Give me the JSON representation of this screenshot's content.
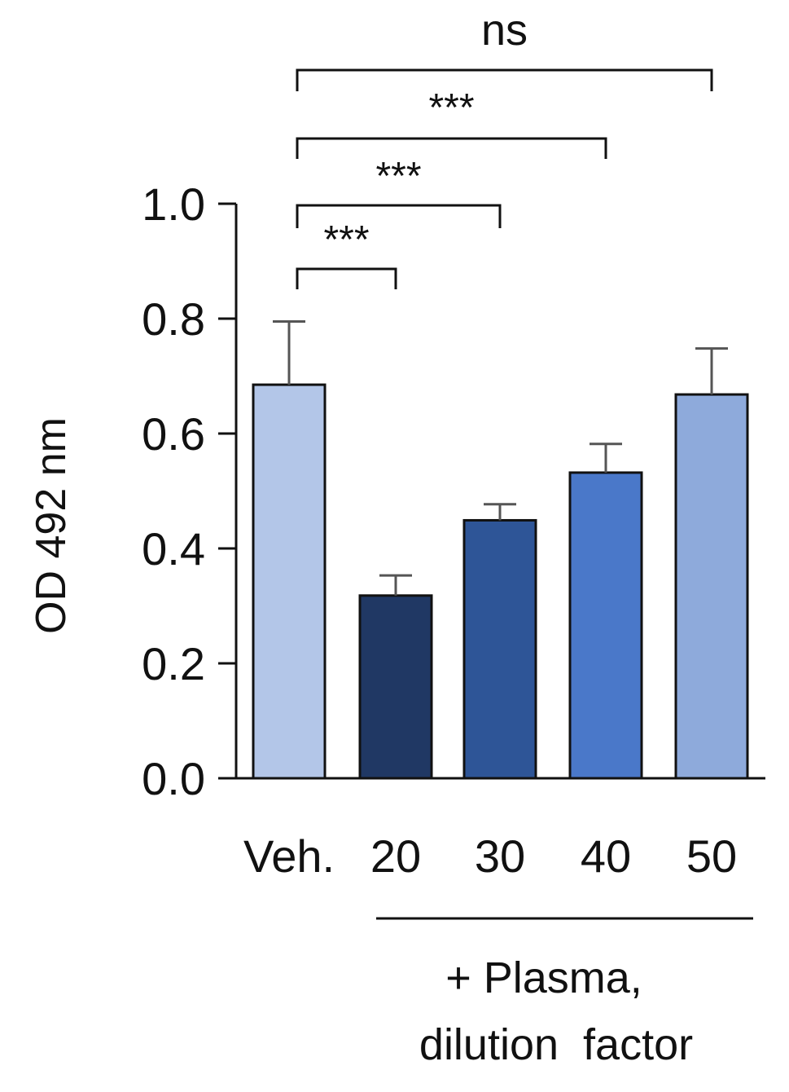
{
  "chart_data": {
    "type": "bar",
    "categories": [
      "Veh.",
      "20",
      "30",
      "40",
      "50"
    ],
    "values": [
      0.685,
      0.318,
      0.449,
      0.532,
      0.668
    ],
    "errors": [
      0.11,
      0.035,
      0.028,
      0.05,
      0.08
    ],
    "colors": [
      "#b3c6e8",
      "#203864",
      "#2e5597",
      "#4a78c9",
      "#8eaadb"
    ],
    "ylabel": "OD 492 nm",
    "ylim": [
      0,
      1.0
    ],
    "yticks": [
      "0.0",
      "0.2",
      "0.4",
      "0.6",
      "0.8",
      "1.0"
    ],
    "ytick_values": [
      0,
      0.2,
      0.4,
      0.6,
      0.8,
      1.0
    ],
    "comparisons": [
      {
        "from": "Veh.",
        "to": "20",
        "label": "***"
      },
      {
        "from": "Veh.",
        "to": "30",
        "label": "***"
      },
      {
        "from": "Veh.",
        "to": "40",
        "label": "***"
      },
      {
        "from": "Veh.",
        "to": "50",
        "label": "ns"
      }
    ],
    "group_label_line1": "+ Plasma,",
    "group_label_line2": "dilution  factor"
  }
}
